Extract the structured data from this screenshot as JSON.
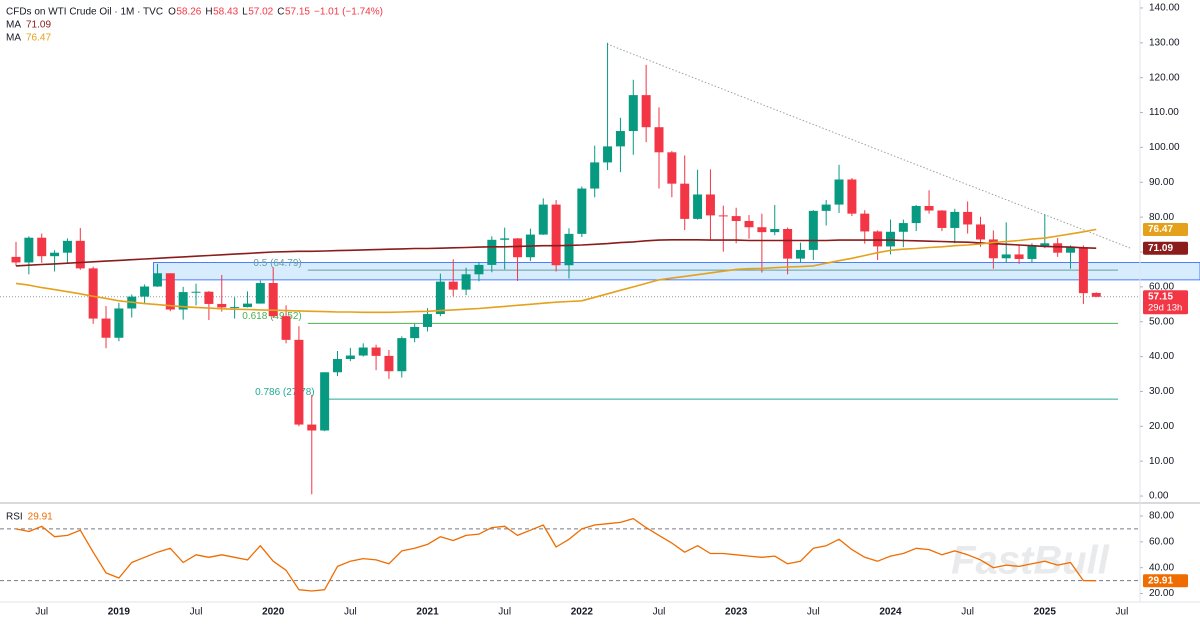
{
  "chart_data": [
    {
      "type": "candlestick",
      "header": {
        "symbol": "CFDs on WTI Crude Oil · 1M · TVC",
        "ohlc": [
          {
            "key": "O",
            "value": "58.26"
          },
          {
            "key": "H",
            "value": "58.43"
          },
          {
            "key": "L",
            "value": "57.02"
          },
          {
            "key": "C",
            "value": "57.15"
          }
        ],
        "change": "−1.01 (−1.74%)"
      },
      "countdown": "29d 13h",
      "watermark": "FastBull",
      "categories": [
        null,
        null,
        "Jul",
        null,
        null,
        null,
        null,
        null,
        "2019",
        null,
        null,
        null,
        null,
        null,
        "Jul",
        null,
        null,
        null,
        null,
        null,
        "2020",
        null,
        null,
        null,
        null,
        null,
        "Jul",
        null,
        null,
        null,
        null,
        null,
        "2021",
        null,
        null,
        null,
        null,
        null,
        "Jul",
        null,
        null,
        null,
        null,
        null,
        "2022",
        null,
        null,
        null,
        null,
        null,
        "Jul",
        null,
        null,
        null,
        null,
        null,
        "2023",
        null,
        null,
        null,
        null,
        null,
        "Jul",
        null,
        null,
        null,
        null,
        null,
        "2024",
        null,
        null,
        null,
        null,
        null,
        "Jul",
        null,
        null,
        null,
        null,
        null,
        "2025",
        null,
        null,
        null,
        null,
        null,
        "Jul"
      ],
      "open": [
        68.6,
        67.0,
        74.1,
        68.8,
        69.8,
        73.2,
        65.3,
        50.9,
        45.4,
        53.8,
        57.2,
        60.1,
        63.9,
        53.5,
        58.5,
        58.6,
        55.1,
        54.1,
        54.2,
        55.2,
        61.1,
        51.6,
        44.8,
        20.5,
        18.8,
        35.5,
        39.3,
        40.3,
        42.6,
        40.2,
        35.8,
        45.3,
        48.5,
        52.2,
        61.5,
        59.2,
        63.6,
        66.3,
        73.5,
        73.9,
        68.5,
        75.0,
        83.6,
        66.2,
        75.2,
        88.2,
        95.7,
        100.3,
        104.7,
        115.0,
        105.8,
        98.6,
        89.6,
        79.5,
        86.5,
        80.5,
        80.3,
        78.9,
        77.1,
        75.7,
        76.6,
        68.1,
        70.6,
        81.8,
        83.6,
        90.8,
        81.0,
        75.9,
        71.6,
        75.8,
        78.3,
        83.2,
        81.9,
        76.9,
        81.5,
        77.9,
        73.6,
        68.2,
        69.3,
        68.0,
        71.7,
        72.5,
        69.8,
        71.4,
        58.26,
        null,
        null
      ],
      "high": [
        72.9,
        74.5,
        75.3,
        70.5,
        73.9,
        76.9,
        65.8,
        54.5,
        55.4,
        57.8,
        60.7,
        66.6,
        63.9,
        60.0,
        60.9,
        58.8,
        63.4,
        57.0,
        58.7,
        61.8,
        65.6,
        54.7,
        48.7,
        29.0,
        35.5,
        41.6,
        42.5,
        43.8,
        43.4,
        41.9,
        45.8,
        49.4,
        53.9,
        63.8,
        67.9,
        65.5,
        67.0,
        74.5,
        77.0,
        74.0,
        76.7,
        85.4,
        84.9,
        76.8,
        88.8,
        100.5,
        130.0,
        108.5,
        119.4,
        123.7,
        111.5,
        99.0,
        97.7,
        93.6,
        93.7,
        83.3,
        82.7,
        80.6,
        81.0,
        83.5,
        77.0,
        72.7,
        82.0,
        84.9,
        95.0,
        91.2,
        82.0,
        76.2,
        79.3,
        79.3,
        83.5,
        87.7,
        82.0,
        82.4,
        84.5,
        80.1,
        76.2,
        78.5,
        72.0,
        72.5,
        80.8,
        74.0,
        71.9,
        71.9,
        58.43,
        null,
        null
      ],
      "low": [
        66.0,
        63.6,
        66.9,
        64.4,
        67.0,
        64.9,
        49.4,
        42.4,
        44.4,
        51.2,
        55.2,
        60.0,
        53.0,
        50.6,
        54.7,
        50.5,
        52.9,
        50.9,
        54.1,
        55.2,
        51.1,
        43.8,
        20.0,
        0.5,
        18.6,
        34.4,
        38.7,
        40.0,
        36.1,
        33.6,
        34.0,
        44.1,
        47.2,
        51.6,
        57.3,
        57.6,
        61.6,
        64.2,
        65.0,
        61.7,
        67.4,
        74.9,
        64.4,
        62.4,
        74.3,
        85.7,
        93.5,
        92.9,
        97.9,
        101.5,
        88.2,
        85.7,
        76.3,
        79.3,
        73.6,
        70.1,
        72.5,
        73.8,
        64.1,
        74.8,
        63.6,
        66.9,
        67.7,
        77.6,
        81.2,
        80.3,
        72.4,
        67.7,
        69.3,
        71.4,
        76.0,
        81.0,
        76.0,
        72.5,
        75.3,
        71.5,
        65.2,
        66.9,
        66.6,
        66.9,
        71.1,
        68.6,
        65.2,
        55.1,
        57.02,
        null,
        null
      ],
      "close": [
        67.0,
        74.1,
        68.8,
        69.8,
        73.2,
        65.3,
        50.9,
        45.4,
        53.8,
        57.2,
        60.1,
        63.9,
        53.5,
        58.5,
        58.6,
        55.1,
        54.1,
        54.2,
        55.2,
        61.1,
        51.6,
        44.8,
        20.5,
        18.8,
        35.5,
        39.3,
        40.3,
        42.6,
        40.2,
        35.8,
        45.3,
        48.5,
        52.2,
        61.5,
        59.2,
        63.6,
        66.3,
        73.5,
        73.9,
        68.5,
        75.0,
        83.6,
        66.2,
        75.2,
        88.2,
        95.7,
        100.3,
        104.7,
        115.0,
        105.8,
        98.6,
        89.6,
        79.5,
        86.5,
        80.5,
        80.3,
        78.9,
        77.1,
        75.7,
        76.6,
        68.1,
        70.6,
        81.8,
        83.6,
        90.8,
        81.0,
        75.9,
        71.6,
        75.8,
        78.3,
        83.2,
        81.9,
        76.9,
        81.5,
        77.9,
        73.6,
        68.2,
        69.3,
        68.0,
        71.7,
        72.5,
        69.8,
        71.4,
        58.2,
        57.15,
        null,
        null
      ],
      "up_color": "#089981",
      "down_color": "#f23645",
      "ma": [
        {
          "name": "MA",
          "color": "#8b1c1c",
          "values": [
            66,
            66.2,
            66.4,
            66.6,
            66.8,
            67,
            67.2,
            67.4,
            67.6,
            67.8,
            68,
            68.2,
            68.4,
            68.6,
            68.8,
            69,
            69.2,
            69.4,
            69.6,
            69.8,
            70,
            70.1,
            70.2,
            70.2,
            70.3,
            70.4,
            70.5,
            70.6,
            70.7,
            70.8,
            70.9,
            71,
            71,
            71.1,
            71.2,
            71.3,
            71.4,
            71.5,
            71.5,
            71.6,
            71.7,
            71.8,
            71.8,
            71.9,
            72,
            72.2,
            72.4,
            72.7,
            72.9,
            73.2,
            73.4,
            73.5,
            73.5,
            73.5,
            73.4,
            73.4,
            73.4,
            73.3,
            73.3,
            73.3,
            73.3,
            73.3,
            73.3,
            73.3,
            73.4,
            73.4,
            73.4,
            73.4,
            73.4,
            73.3,
            73.2,
            73.1,
            73,
            72.9,
            72.8,
            72.6,
            72.4,
            72.2,
            72,
            71.8,
            71.6,
            71.5,
            71.4,
            71.2,
            71.09,
            null,
            null
          ]
        },
        {
          "name": "MA",
          "color": "#e5a11c",
          "values": [
            61,
            60.5,
            59.8,
            59.2,
            58.6,
            58,
            57.3,
            56.7,
            56,
            55.6,
            55.2,
            54.9,
            54.6,
            54.3,
            54.1,
            53.9,
            53.7,
            53.6,
            53.5,
            53.4,
            53.3,
            53.2,
            53.1,
            53,
            52.9,
            52.8,
            52.8,
            52.7,
            52.7,
            52.7,
            52.8,
            52.9,
            53,
            53.2,
            53.4,
            53.6,
            53.8,
            54.1,
            54.4,
            54.7,
            55,
            55.3,
            55.6,
            55.8,
            56,
            57,
            58,
            59,
            60,
            61,
            62,
            62.5,
            63,
            63.5,
            64,
            64.5,
            65,
            65.2,
            65.3,
            65.5,
            65.7,
            65.8,
            66,
            66.8,
            67.5,
            68.2,
            69,
            69.8,
            70.5,
            70.8,
            71,
            71.3,
            71.5,
            71.8,
            72,
            72.3,
            72.7,
            73,
            73.3,
            73.7,
            74,
            74.6,
            75.2,
            75.8,
            76.47,
            null,
            null
          ]
        }
      ],
      "zone": [
        62,
        67
      ],
      "fib_levels": [
        {
          "label": "0.5 (64.79)",
          "value": 64.79,
          "color": "#6a9e9a"
        },
        {
          "label": "0.618 (49.52)",
          "value": 49.52,
          "color": "#4caf50"
        },
        {
          "label": "0.786 (27.78)",
          "value": 27.78,
          "color": "#22ab94"
        }
      ],
      "ylim": [
        -2,
        142
      ],
      "yticks": [
        {
          "value": 0,
          "label": "0.00"
        },
        {
          "value": 10,
          "label": "10.00"
        },
        {
          "value": 20,
          "label": "20.00"
        },
        {
          "value": 30,
          "label": "30.00"
        },
        {
          "value": 40,
          "label": "40.00"
        },
        {
          "value": 50,
          "label": "50.00"
        },
        {
          "value": 60,
          "label": "60.00"
        },
        {
          "value": 70,
          "label": "70.00"
        },
        {
          "value": 80,
          "label": "80.00"
        },
        {
          "value": 90,
          "label": "90.00"
        },
        {
          "value": 100,
          "label": "100.00"
        },
        {
          "value": 110,
          "label": "110.00"
        },
        {
          "value": 120,
          "label": "120.00"
        },
        {
          "value": 130,
          "label": "130.00"
        },
        {
          "value": 140,
          "label": "140.00"
        }
      ]
    },
    {
      "type": "line",
      "title": "RSI",
      "color": "#ef6c00",
      "values": [
        70,
        68,
        72,
        64,
        65,
        69,
        52,
        36,
        32,
        44,
        48,
        52,
        55,
        44,
        50,
        48,
        50,
        48,
        46,
        57,
        45,
        38,
        23,
        22,
        23,
        41,
        45,
        47,
        46,
        43,
        53,
        55,
        58,
        64,
        61,
        65,
        66,
        71,
        72,
        65,
        69,
        73,
        56,
        62,
        70,
        73,
        74,
        75,
        78,
        71,
        65,
        59,
        52,
        57,
        51,
        51,
        50,
        49,
        48,
        49,
        43,
        45,
        55,
        57,
        62,
        54,
        48,
        45,
        49,
        51,
        55,
        54,
        50,
        53,
        50,
        46,
        40,
        42,
        41,
        43,
        45,
        42,
        44,
        30,
        29.91,
        null,
        null
      ],
      "levels": [
        70,
        30
      ],
      "ylim": [
        15,
        88.5
      ],
      "yticks": [
        {
          "value": 20,
          "label": "20.00"
        },
        {
          "value": 40,
          "label": "40.00"
        },
        {
          "value": 60,
          "label": "60.00"
        },
        {
          "value": 80,
          "label": "80.00"
        }
      ]
    }
  ]
}
